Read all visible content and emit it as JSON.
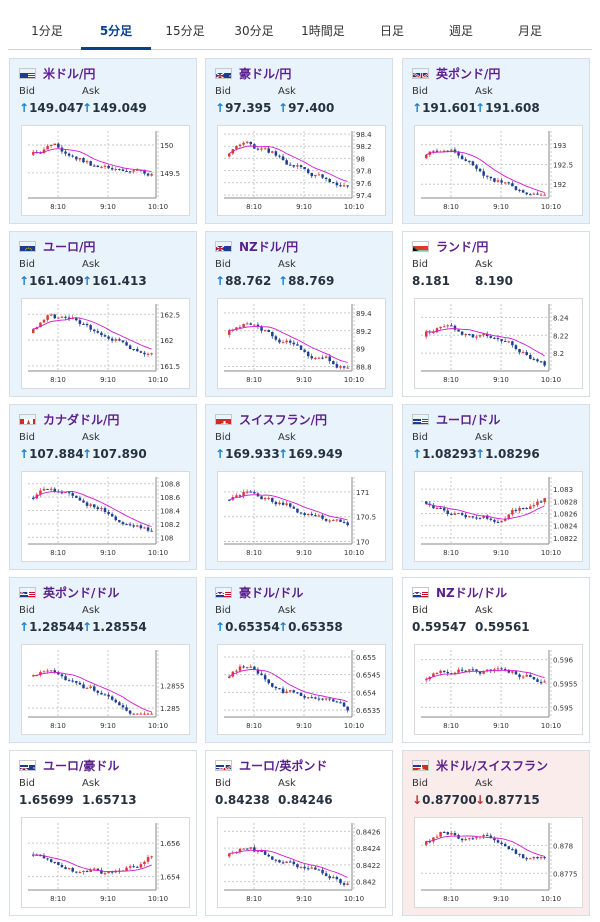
{
  "tabs": [
    {
      "label": "1分足",
      "active": false
    },
    {
      "label": "5分足",
      "active": true
    },
    {
      "label": "15分足",
      "active": false
    },
    {
      "label": "30分足",
      "active": false
    },
    {
      "label": "1時間足",
      "active": false
    },
    {
      "label": "日足",
      "active": false
    },
    {
      "label": "週足",
      "active": false
    },
    {
      "label": "月足",
      "active": false
    }
  ],
  "labels": {
    "bid": "Bid",
    "ask": "Ask"
  },
  "x_ticks": [
    "8:10",
    "9:10",
    "10:10"
  ],
  "colors": {
    "up": "#d93a3a",
    "down": "#1d3f8f",
    "ma": "#d21ad2",
    "accent": "#0b3f8f",
    "pair": "#5b1f8e"
  },
  "pairs": [
    {
      "name": "米ドル/円",
      "flag": "flag-us-icon",
      "trend": "up",
      "bid": "149.047",
      "ask": "149.049",
      "ticks": [
        "150",
        "149.5"
      ],
      "ylim": [
        149.05,
        150.25
      ]
    },
    {
      "name": "豪ドル/円",
      "flag": "flag-au-icon",
      "trend": "up",
      "bid": "97.395",
      "ask": "97.400",
      "ticks": [
        "98.4",
        "98.2",
        "98",
        "97.8",
        "97.6",
        "97.4"
      ],
      "ylim": [
        97.35,
        98.45
      ]
    },
    {
      "name": "英ポンド/円",
      "flag": "flag-gb-icon",
      "trend": "up",
      "bid": "191.601",
      "ask": "191.608",
      "ticks": [
        "193",
        "192.5",
        "192"
      ],
      "ylim": [
        191.65,
        193.35
      ]
    },
    {
      "name": "ユーロ/円",
      "flag": "flag-eu-icon",
      "trend": "up",
      "bid": "161.409",
      "ask": "161.413",
      "ticks": [
        "162.5",
        "162",
        "161.5"
      ],
      "ylim": [
        161.4,
        162.7
      ]
    },
    {
      "name": "NZドル/円",
      "flag": "flag-nz-icon",
      "trend": "up",
      "bid": "88.762",
      "ask": "88.769",
      "ticks": [
        "89.4",
        "89.2",
        "89",
        "88.8"
      ],
      "ylim": [
        88.75,
        89.5
      ]
    },
    {
      "name": "ランド/円",
      "flag": "flag-za-icon",
      "trend": "none",
      "bid": "8.181",
      "ask": "8.190",
      "ticks": [
        "8.24",
        "8.22",
        "8.2"
      ],
      "ylim": [
        8.18,
        8.255
      ]
    },
    {
      "name": "カナダドル/円",
      "flag": "flag-ca-icon",
      "trend": "up",
      "bid": "107.884",
      "ask": "107.890",
      "ticks": [
        "108.8",
        "108.6",
        "108.4",
        "108.2",
        "108"
      ],
      "ylim": [
        107.9,
        108.9
      ]
    },
    {
      "name": "スイスフラン/円",
      "flag": "flag-ch-icon",
      "trend": "up",
      "bid": "169.933",
      "ask": "169.949",
      "ticks": [
        "171",
        "170.5",
        "170"
      ],
      "ylim": [
        169.95,
        171.3
      ]
    },
    {
      "name": "ユーロ/ドル",
      "flag": "flag-eu-us-icon",
      "trend": "up",
      "bid": "1.08293",
      "ask": "1.08296",
      "ticks": [
        "1.083",
        "1.0828",
        "1.0826",
        "1.0824",
        "1.0822"
      ],
      "ylim": [
        1.0821,
        1.0832
      ]
    },
    {
      "name": "英ポンド/ドル",
      "flag": "flag-gb-us-icon",
      "trend": "up",
      "bid": "1.28544",
      "ask": "1.28554",
      "ticks": [
        "1.2855",
        "1.285"
      ],
      "ylim": [
        1.2848,
        1.2863
      ]
    },
    {
      "name": "豪ドル/ドル",
      "flag": "flag-au-us-icon",
      "trend": "up",
      "bid": "0.65354",
      "ask": "0.65358",
      "ticks": [
        "0.655",
        "0.6545",
        "0.654",
        "0.6535"
      ],
      "ylim": [
        0.6533,
        0.6552
      ]
    },
    {
      "name": "NZドル/ドル",
      "flag": "flag-nz-us-icon",
      "trend": "none",
      "bid": "0.59547",
      "ask": "0.59561",
      "ticks": [
        "0.596",
        "0.5955",
        "0.595"
      ],
      "ylim": [
        0.5948,
        0.5962
      ]
    },
    {
      "name": "ユーロ/豪ドル",
      "flag": "flag-eu-au-icon",
      "trend": "none",
      "bid": "1.65699",
      "ask": "1.65713",
      "ticks": [
        "1.656",
        "1.654"
      ],
      "ylim": [
        1.6532,
        1.6572
      ]
    },
    {
      "name": "ユーロ/英ポンド",
      "flag": "flag-eu-gb-icon",
      "trend": "none",
      "bid": "0.84238",
      "ask": "0.84246",
      "ticks": [
        "0.8426",
        "0.8424",
        "0.8422",
        "0.842"
      ],
      "ylim": [
        0.8419,
        0.8427
      ]
    },
    {
      "name": "米ドル/スイスフラン",
      "flag": "flag-us-ch-icon",
      "trend": "down",
      "bid": "0.87700",
      "ask": "0.87715",
      "ticks": [
        "0.878",
        "0.8775"
      ],
      "ylim": [
        0.8772,
        0.8784
      ]
    }
  ]
}
